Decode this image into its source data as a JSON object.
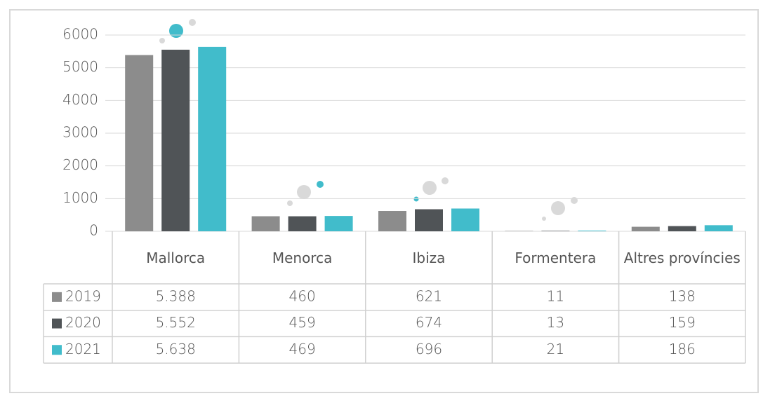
{
  "chart_data": {
    "type": "bar",
    "categories": [
      "Mallorca",
      "Menorca",
      "Ibiza",
      "Formentera",
      "Altres províncies"
    ],
    "series": [
      {
        "name": "2019",
        "color": "#8c8c8c",
        "values": [
          5388,
          460,
          621,
          11,
          138
        ],
        "value_labels": [
          "5.388",
          "460",
          "621",
          "11",
          "138"
        ]
      },
      {
        "name": "2020",
        "color": "#505457",
        "values": [
          5552,
          459,
          674,
          13,
          159
        ],
        "value_labels": [
          "5.552",
          "459",
          "674",
          "13",
          "159"
        ]
      },
      {
        "name": "2021",
        "color": "#41bccb",
        "values": [
          5638,
          469,
          696,
          21,
          186
        ],
        "value_labels": [
          "5.638",
          "469",
          "696",
          "21",
          "186"
        ]
      }
    ],
    "ylim": [
      0,
      6000
    ],
    "yticks": [
      0,
      1000,
      2000,
      3000,
      4000,
      5000,
      6000
    ],
    "grid": true
  }
}
